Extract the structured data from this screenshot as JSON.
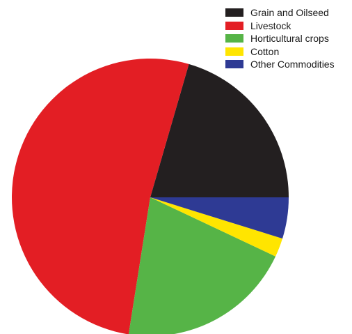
{
  "chart_data": {
    "type": "pie",
    "title": "",
    "legend_position": "top-right",
    "start_angle_deg": 0,
    "direction": "counterclockwise-from-3-oclock",
    "slices": [
      {
        "label": "Grain and Oilseed",
        "value": 20.5,
        "color": "#231f20"
      },
      {
        "label": "Livestock",
        "value": 52.0,
        "color": "#e31e24"
      },
      {
        "label": "Horticultural crops",
        "value": 20.5,
        "color": "#56b447"
      },
      {
        "label": "Cotton",
        "value": 2.2,
        "color": "#ffe500"
      },
      {
        "label": "Other Commodities",
        "value": 4.8,
        "color": "#2e3a94"
      }
    ]
  }
}
